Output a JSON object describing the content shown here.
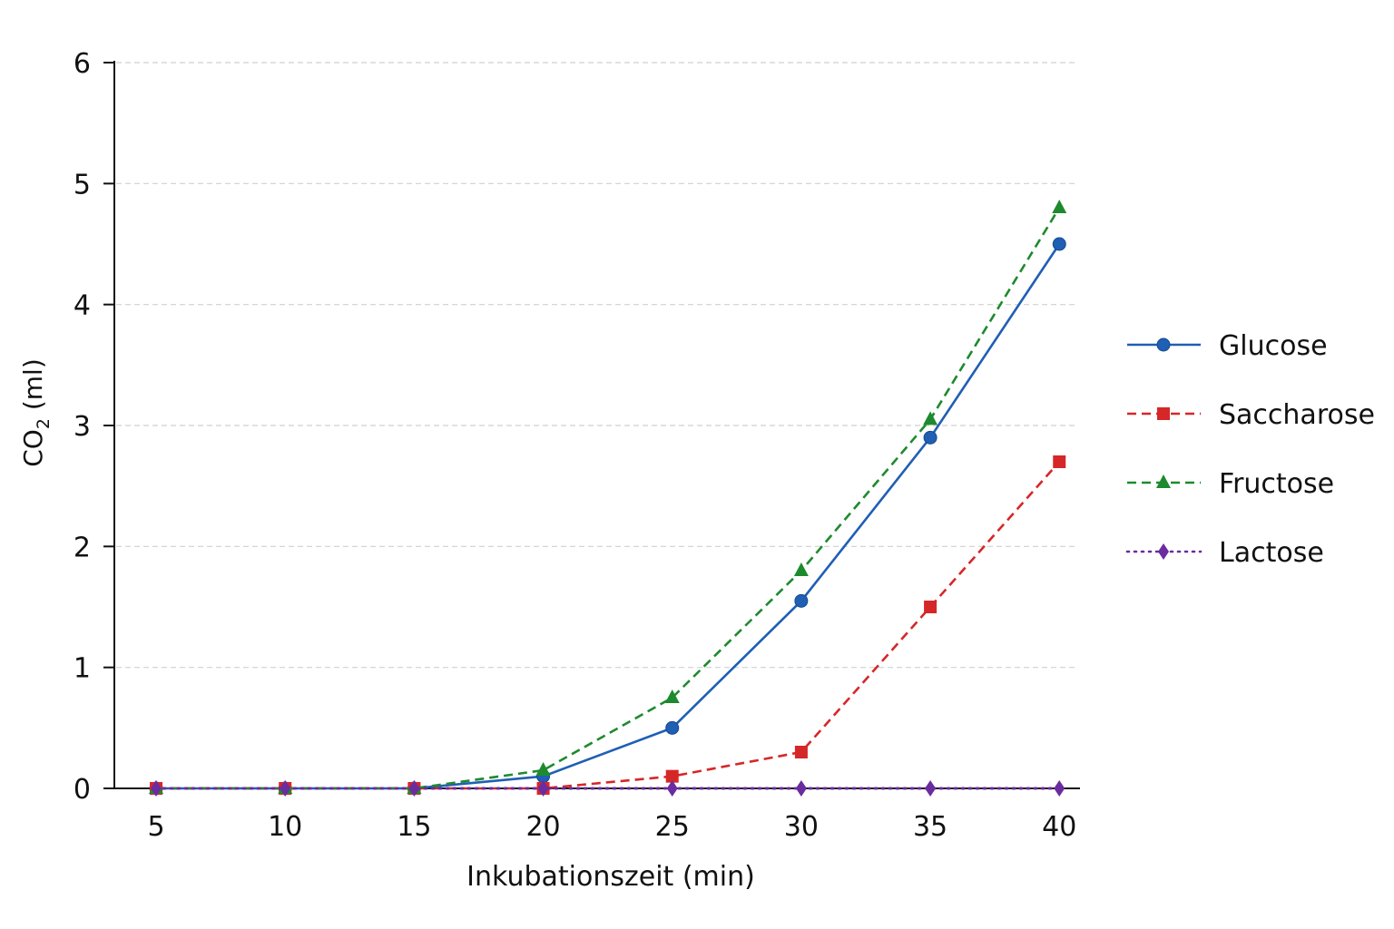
{
  "chart_data": {
    "type": "line",
    "title": "",
    "xlabel": "Inkubationszeit (min)",
    "ylabel": "CO₂ (ml)",
    "ylabel_parts": {
      "main": "CO",
      "sub": "2",
      "rest": " (ml)"
    },
    "x": [
      5,
      10,
      15,
      20,
      25,
      30,
      35,
      40
    ],
    "x_ticks": [
      "5",
      "10",
      "15",
      "20",
      "25",
      "30",
      "35",
      "40"
    ],
    "y_ticks": [
      "0",
      "1",
      "2",
      "3",
      "4",
      "5",
      "6"
    ],
    "ylim": [
      0,
      6
    ],
    "xlim": [
      3.1,
      40.8
    ],
    "grid": "horizontal dashed",
    "legend_placement": "right",
    "series": [
      {
        "name": "Glucose",
        "values": [
          0,
          0,
          0,
          0.1,
          0.5,
          1.55,
          2.9,
          4.5
        ],
        "color": "#1f5fb4",
        "dash": "solid",
        "marker": "circle"
      },
      {
        "name": "Saccharose",
        "values": [
          0,
          0,
          0,
          0,
          0.1,
          0.3,
          1.5,
          2.7
        ],
        "color": "#d62728",
        "dash": "dashed",
        "marker": "square"
      },
      {
        "name": "Fructose",
        "values": [
          0,
          0,
          0,
          0.15,
          0.75,
          1.8,
          3.05,
          4.8
        ],
        "color": "#1e8a2e",
        "dash": "dashed",
        "marker": "triangle"
      },
      {
        "name": "Lactose",
        "values": [
          0,
          0,
          0,
          0,
          0,
          0,
          0,
          0
        ],
        "color": "#6a2c9e",
        "dash": "dotted",
        "marker": "diamond"
      }
    ]
  }
}
